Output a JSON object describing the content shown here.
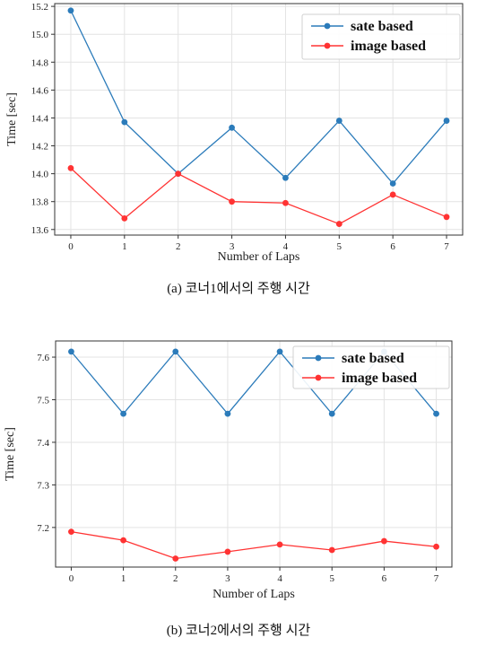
{
  "chart_data": [
    {
      "type": "line",
      "x": [
        0,
        1,
        2,
        3,
        4,
        5,
        6,
        7
      ],
      "series": [
        {
          "name": "sate based",
          "color": "#2b7bba",
          "values": [
            15.17,
            14.37,
            14.0,
            14.33,
            13.97,
            14.38,
            13.93,
            14.38
          ]
        },
        {
          "name": "image based",
          "color": "#ff3333",
          "values": [
            14.04,
            13.68,
            14.0,
            13.8,
            13.79,
            13.64,
            13.85,
            13.69
          ]
        }
      ],
      "xlabel": "Number of Laps",
      "ylabel": "Time [sec]",
      "xlim": [
        -0.3,
        7.3
      ],
      "ylim": [
        13.56,
        15.22
      ],
      "xticks": [
        "0",
        "1",
        "2",
        "3",
        "4",
        "5",
        "6",
        "7"
      ],
      "yticks": [
        13.6,
        13.8,
        14.0,
        14.2,
        14.4,
        14.6,
        14.8,
        15.0,
        15.2
      ],
      "grid": true,
      "legend": "top-right",
      "caption": "(a) 코너1에서의 주행 시간"
    },
    {
      "type": "line",
      "x": [
        0,
        1,
        2,
        3,
        4,
        5,
        6,
        7
      ],
      "series": [
        {
          "name": "sate based",
          "color": "#2b7bba",
          "values": [
            7.613,
            7.467,
            7.613,
            7.467,
            7.613,
            7.467,
            7.613,
            7.467
          ]
        },
        {
          "name": "image based",
          "color": "#ff3333",
          "values": [
            7.19,
            7.17,
            7.127,
            7.143,
            7.16,
            7.147,
            7.168,
            7.155
          ]
        }
      ],
      "xlabel": "Number of Laps",
      "ylabel": "Time [sec]",
      "xlim": [
        -0.3,
        7.3
      ],
      "ylim": [
        7.107,
        7.638
      ],
      "xticks": [
        "0",
        "1",
        "2",
        "3",
        "4",
        "5",
        "6",
        "7"
      ],
      "yticks": [
        7.2,
        7.3,
        7.4,
        7.5,
        7.6
      ],
      "grid": true,
      "legend": "top-right",
      "caption": "(b) 코너2에서의 주행 시간"
    }
  ]
}
